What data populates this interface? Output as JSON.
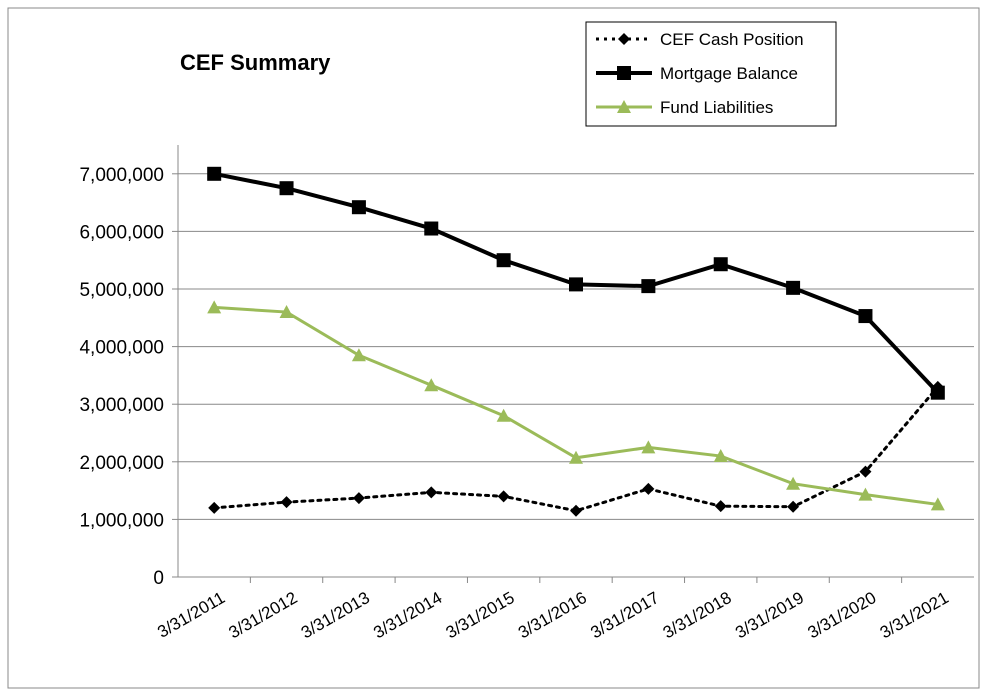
{
  "chart_data": {
    "type": "line",
    "title": "CEF Summary",
    "categories": [
      "3/31/2011",
      "3/31/2012",
      "3/31/2013",
      "3/31/2014",
      "3/31/2015",
      "3/31/2016",
      "3/31/2017",
      "3/31/2018",
      "3/31/2019",
      "3/31/2020",
      "3/31/2021"
    ],
    "series": [
      {
        "name": "CEF Cash Position",
        "color": "#000000",
        "marker": "diamond",
        "dash": "dotted",
        "values": [
          1200000,
          1300000,
          1370000,
          1470000,
          1400000,
          1150000,
          1530000,
          1230000,
          1220000,
          1830000,
          3300000
        ]
      },
      {
        "name": "Mortgage Balance",
        "color": "#000000",
        "marker": "square",
        "dash": "solid",
        "values": [
          7000000,
          6750000,
          6420000,
          6050000,
          5500000,
          5080000,
          5050000,
          5430000,
          5020000,
          4530000,
          3200000
        ]
      },
      {
        "name": "Fund Liabilities",
        "color": "#9bbb59",
        "marker": "triangle",
        "dash": "solid",
        "values": [
          4680000,
          4600000,
          3850000,
          3330000,
          2800000,
          2070000,
          2250000,
          2100000,
          1620000,
          1430000,
          1260000
        ]
      }
    ],
    "ylim": [
      0,
      7500000
    ],
    "yticks": [
      0,
      {
        "value": 1000000,
        "label": "1,000,000"
      },
      {
        "value": 2000000,
        "label": "2,000,000"
      },
      {
        "value": 3000000,
        "label": "3,000,000"
      },
      {
        "value": 4000000,
        "label": "4,000,000"
      },
      {
        "value": 5000000,
        "label": "5,000,000"
      },
      {
        "value": 6000000,
        "label": "6,000,000"
      },
      {
        "value": 7000000,
        "label": "7,000,000"
      }
    ],
    "grid": true,
    "legend": "top-right"
  }
}
